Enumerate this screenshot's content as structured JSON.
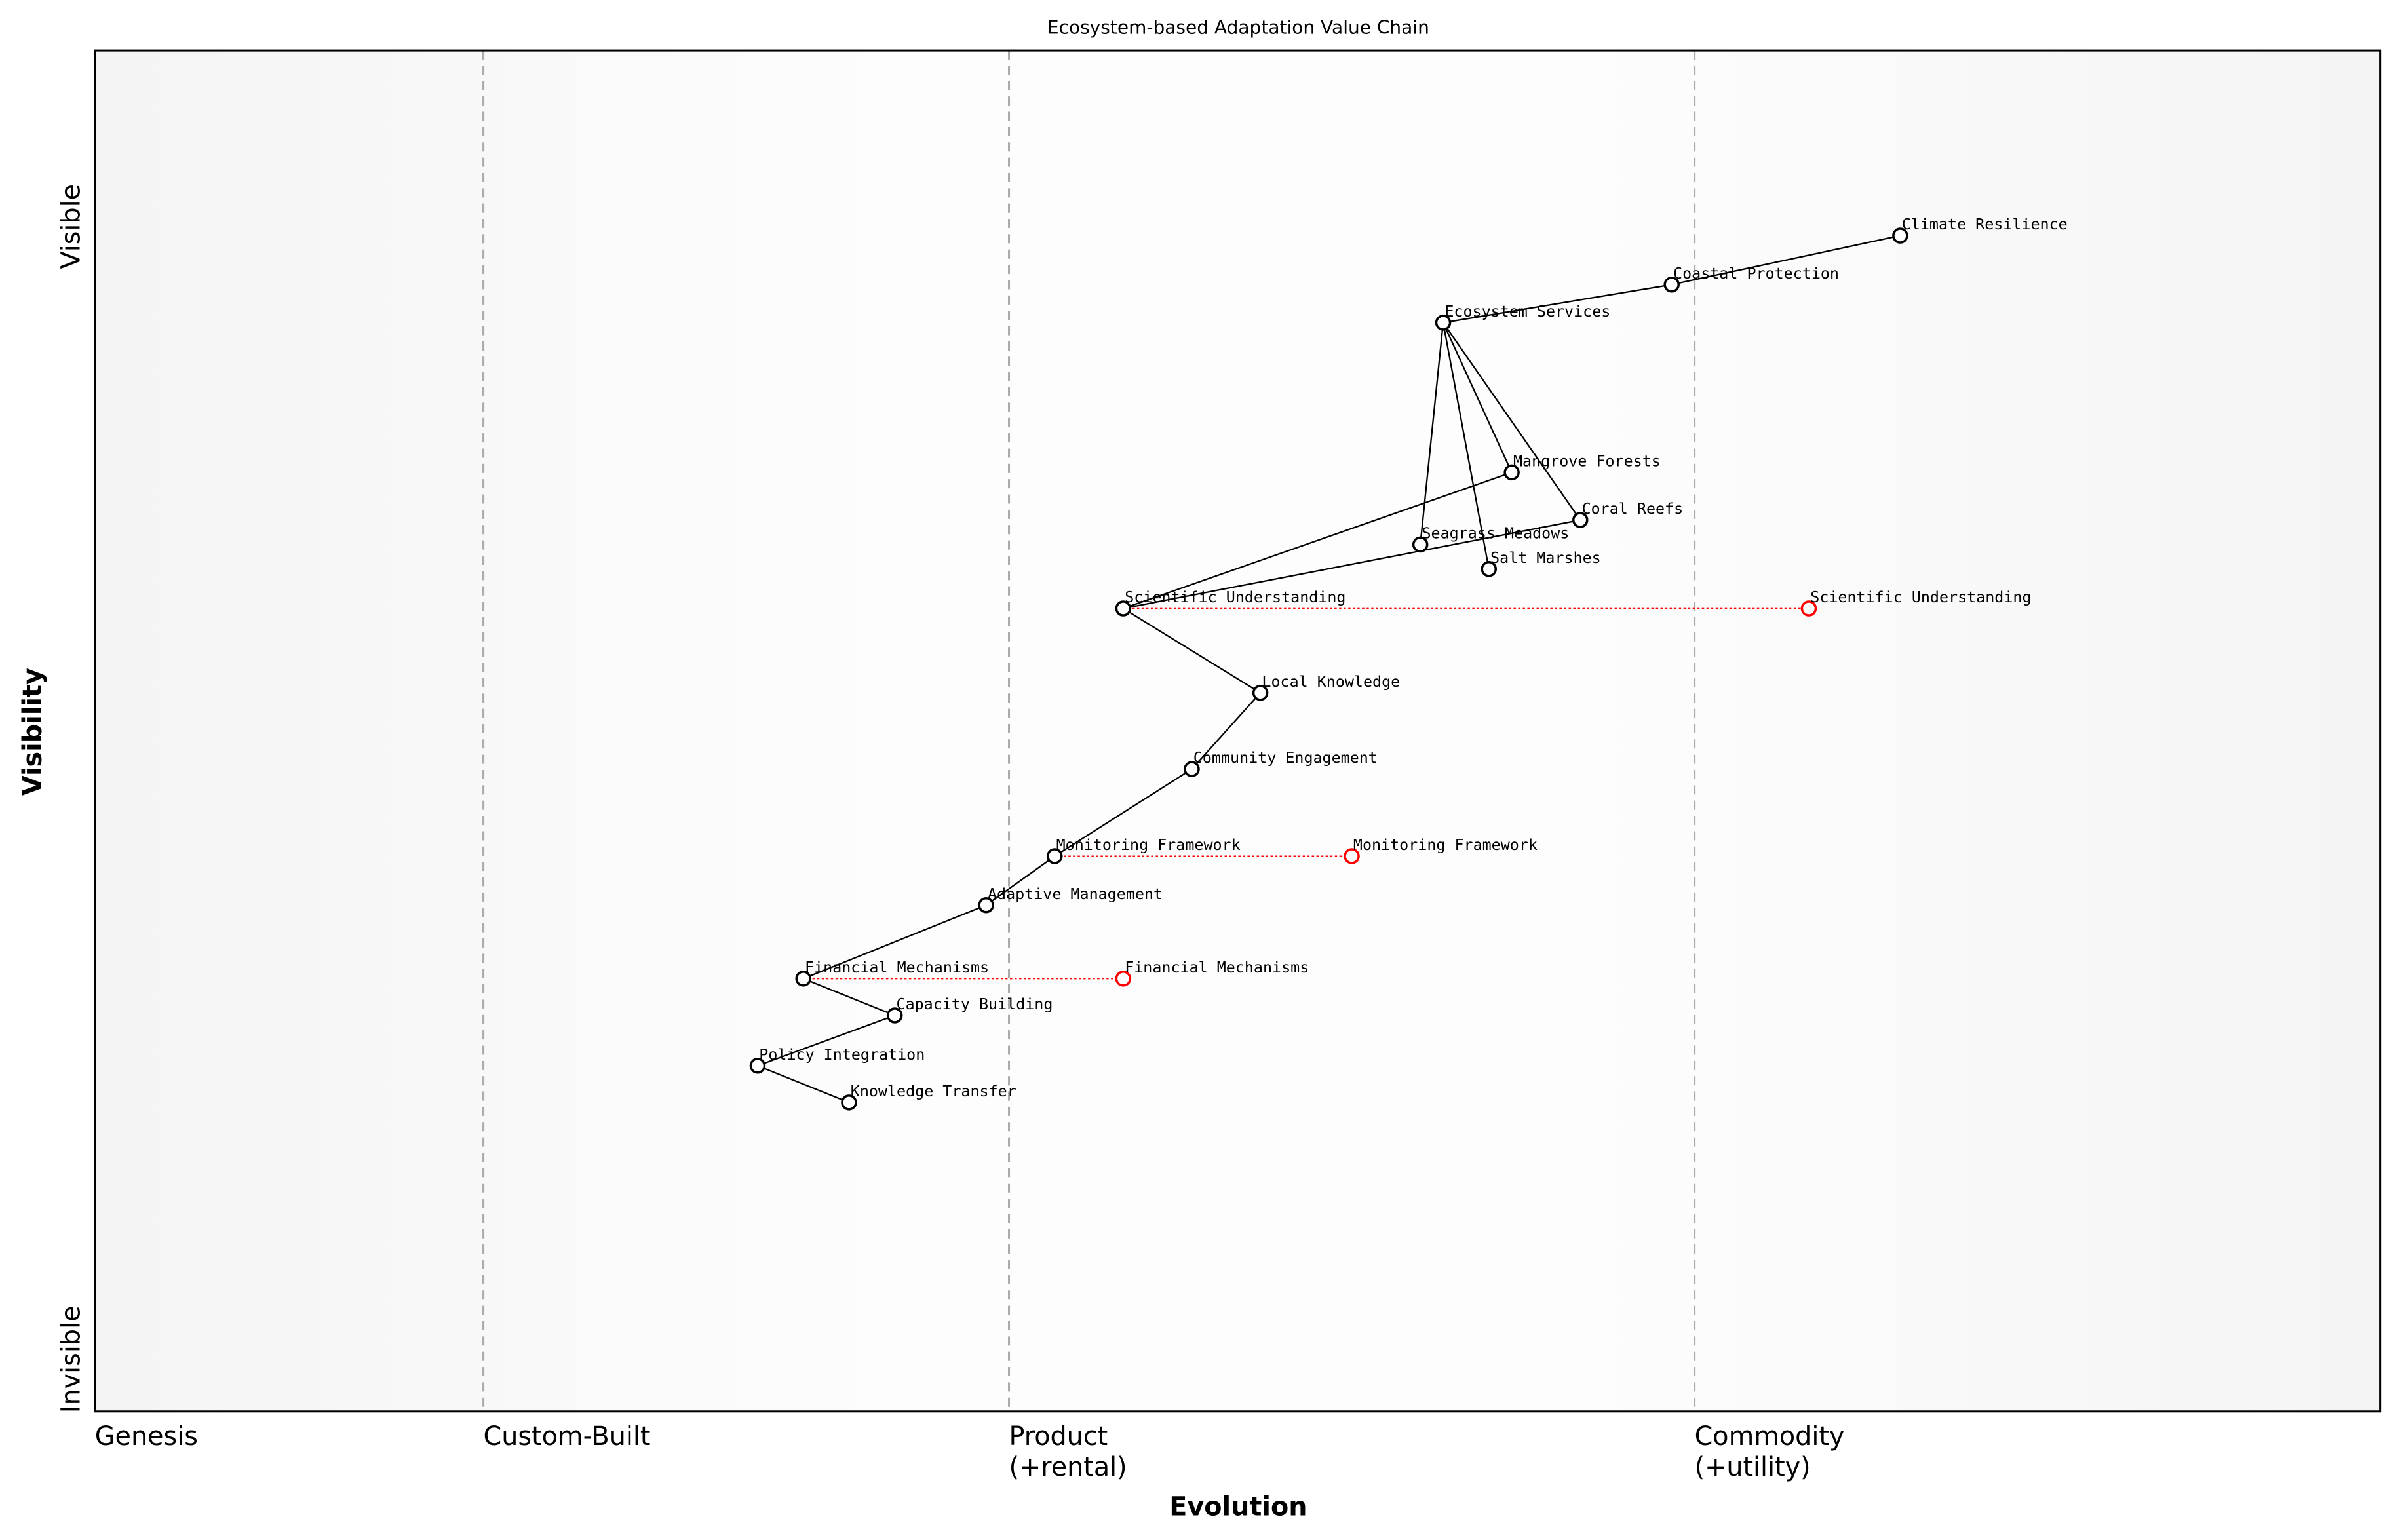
{
  "chart_data": {
    "type": "scatter",
    "title": "Ecosystem-based Adaptation Value Chain",
    "xlabel": "Evolution",
    "ylabel": "Visibility",
    "xlim": [
      0,
      1
    ],
    "ylim": [
      0,
      1
    ],
    "grid": false,
    "x_stage_labels": [
      {
        "label": "Genesis",
        "x": 0.0
      },
      {
        "label": "Custom-Built",
        "x": 0.17
      },
      {
        "label": "Product\n(+rental)",
        "x": 0.4
      },
      {
        "label": "Commodity\n(+utility)",
        "x": 0.7
      }
    ],
    "y_labels": {
      "top": "Visible",
      "bottom": "Invisible"
    },
    "components": [
      {
        "name": "Climate Resilience",
        "x": 0.79,
        "y": 0.864
      },
      {
        "name": "Coastal Protection",
        "x": 0.69,
        "y": 0.828
      },
      {
        "name": "Ecosystem Services",
        "x": 0.59,
        "y": 0.8
      },
      {
        "name": "Mangrove Forests",
        "x": 0.62,
        "y": 0.69
      },
      {
        "name": "Coral Reefs",
        "x": 0.65,
        "y": 0.655
      },
      {
        "name": "Seagrass Meadows",
        "x": 0.58,
        "y": 0.637
      },
      {
        "name": "Salt Marshes",
        "x": 0.61,
        "y": 0.619
      },
      {
        "name": "Scientific Understanding",
        "x": 0.45,
        "y": 0.59
      },
      {
        "name": "Local Knowledge",
        "x": 0.51,
        "y": 0.528
      },
      {
        "name": "Community Engagement",
        "x": 0.48,
        "y": 0.472
      },
      {
        "name": "Monitoring Framework",
        "x": 0.42,
        "y": 0.408
      },
      {
        "name": "Adaptive Management",
        "x": 0.39,
        "y": 0.372
      },
      {
        "name": "Financial Mechanisms",
        "x": 0.31,
        "y": 0.318
      },
      {
        "name": "Capacity Building",
        "x": 0.35,
        "y": 0.291
      },
      {
        "name": "Policy Integration",
        "x": 0.29,
        "y": 0.254
      },
      {
        "name": "Knowledge Transfer",
        "x": 0.33,
        "y": 0.227
      }
    ],
    "links": [
      [
        "Climate Resilience",
        "Coastal Protection"
      ],
      [
        "Coastal Protection",
        "Ecosystem Services"
      ],
      [
        "Ecosystem Services",
        "Mangrove Forests"
      ],
      [
        "Ecosystem Services",
        "Coral Reefs"
      ],
      [
        "Ecosystem Services",
        "Seagrass Meadows"
      ],
      [
        "Ecosystem Services",
        "Salt Marshes"
      ],
      [
        "Mangrove Forests",
        "Scientific Understanding"
      ],
      [
        "Coral Reefs",
        "Scientific Understanding"
      ],
      [
        "Scientific Understanding",
        "Local Knowledge"
      ],
      [
        "Local Knowledge",
        "Community Engagement"
      ],
      [
        "Community Engagement",
        "Monitoring Framework"
      ],
      [
        "Monitoring Framework",
        "Adaptive Management"
      ],
      [
        "Adaptive Management",
        "Financial Mechanisms"
      ],
      [
        "Financial Mechanisms",
        "Capacity Building"
      ],
      [
        "Capacity Building",
        "Policy Integration"
      ],
      [
        "Policy Integration",
        "Knowledge Transfer"
      ]
    ],
    "evolutions": [
      {
        "name": "Scientific Understanding",
        "from_x": 0.45,
        "to_x": 0.75,
        "y": 0.59
      },
      {
        "name": "Monitoring Framework",
        "from_x": 0.42,
        "to_x": 0.55,
        "y": 0.408
      },
      {
        "name": "Financial Mechanisms",
        "from_x": 0.31,
        "to_x": 0.45,
        "y": 0.318
      }
    ],
    "colors": {
      "component": "#000000",
      "evolved": "#ff0000",
      "stage_line": "#aaaaaa",
      "background": "#f5f5f5"
    }
  }
}
